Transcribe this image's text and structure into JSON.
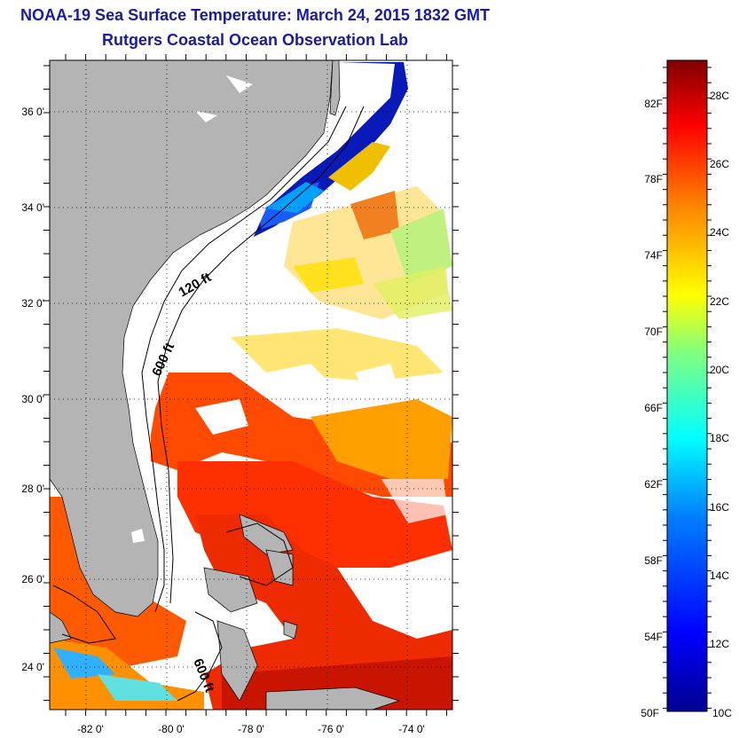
{
  "title": {
    "line1": "NOAA-19 Sea Surface Temperature:  March 24, 2015 1832 GMT",
    "line2": "Rutgers Coastal Ocean Observation Lab"
  },
  "map": {
    "lat_ticks": [
      "36 0'",
      "34 0'",
      "32 0'",
      "30 0'",
      "28 0'",
      "26 0'",
      "24 0'"
    ],
    "lon_ticks": [
      "-82 0'",
      "-80 0'",
      "-78 0'",
      "-76 0'",
      "-74 0'"
    ],
    "contour_labels": [
      "120 ft",
      "600 ft",
      "600 ft"
    ],
    "land_color": "#b4b4b4",
    "cloud_color": "#ffffff"
  },
  "colorbar": {
    "fahrenheit_labels": [
      "82F",
      "78F",
      "74F",
      "70F",
      "66F",
      "62F",
      "58F",
      "54F",
      "50F"
    ],
    "celsius_labels": [
      "28C",
      "26C",
      "24C",
      "22C",
      "20C",
      "18C",
      "16C",
      "14C",
      "12C",
      "10C"
    ],
    "colormap": [
      "#7f0000",
      "#ff0000",
      "#ff8000",
      "#ffff00",
      "#80ff80",
      "#00ffff",
      "#0080ff",
      "#0000ff",
      "#00008f"
    ]
  }
}
